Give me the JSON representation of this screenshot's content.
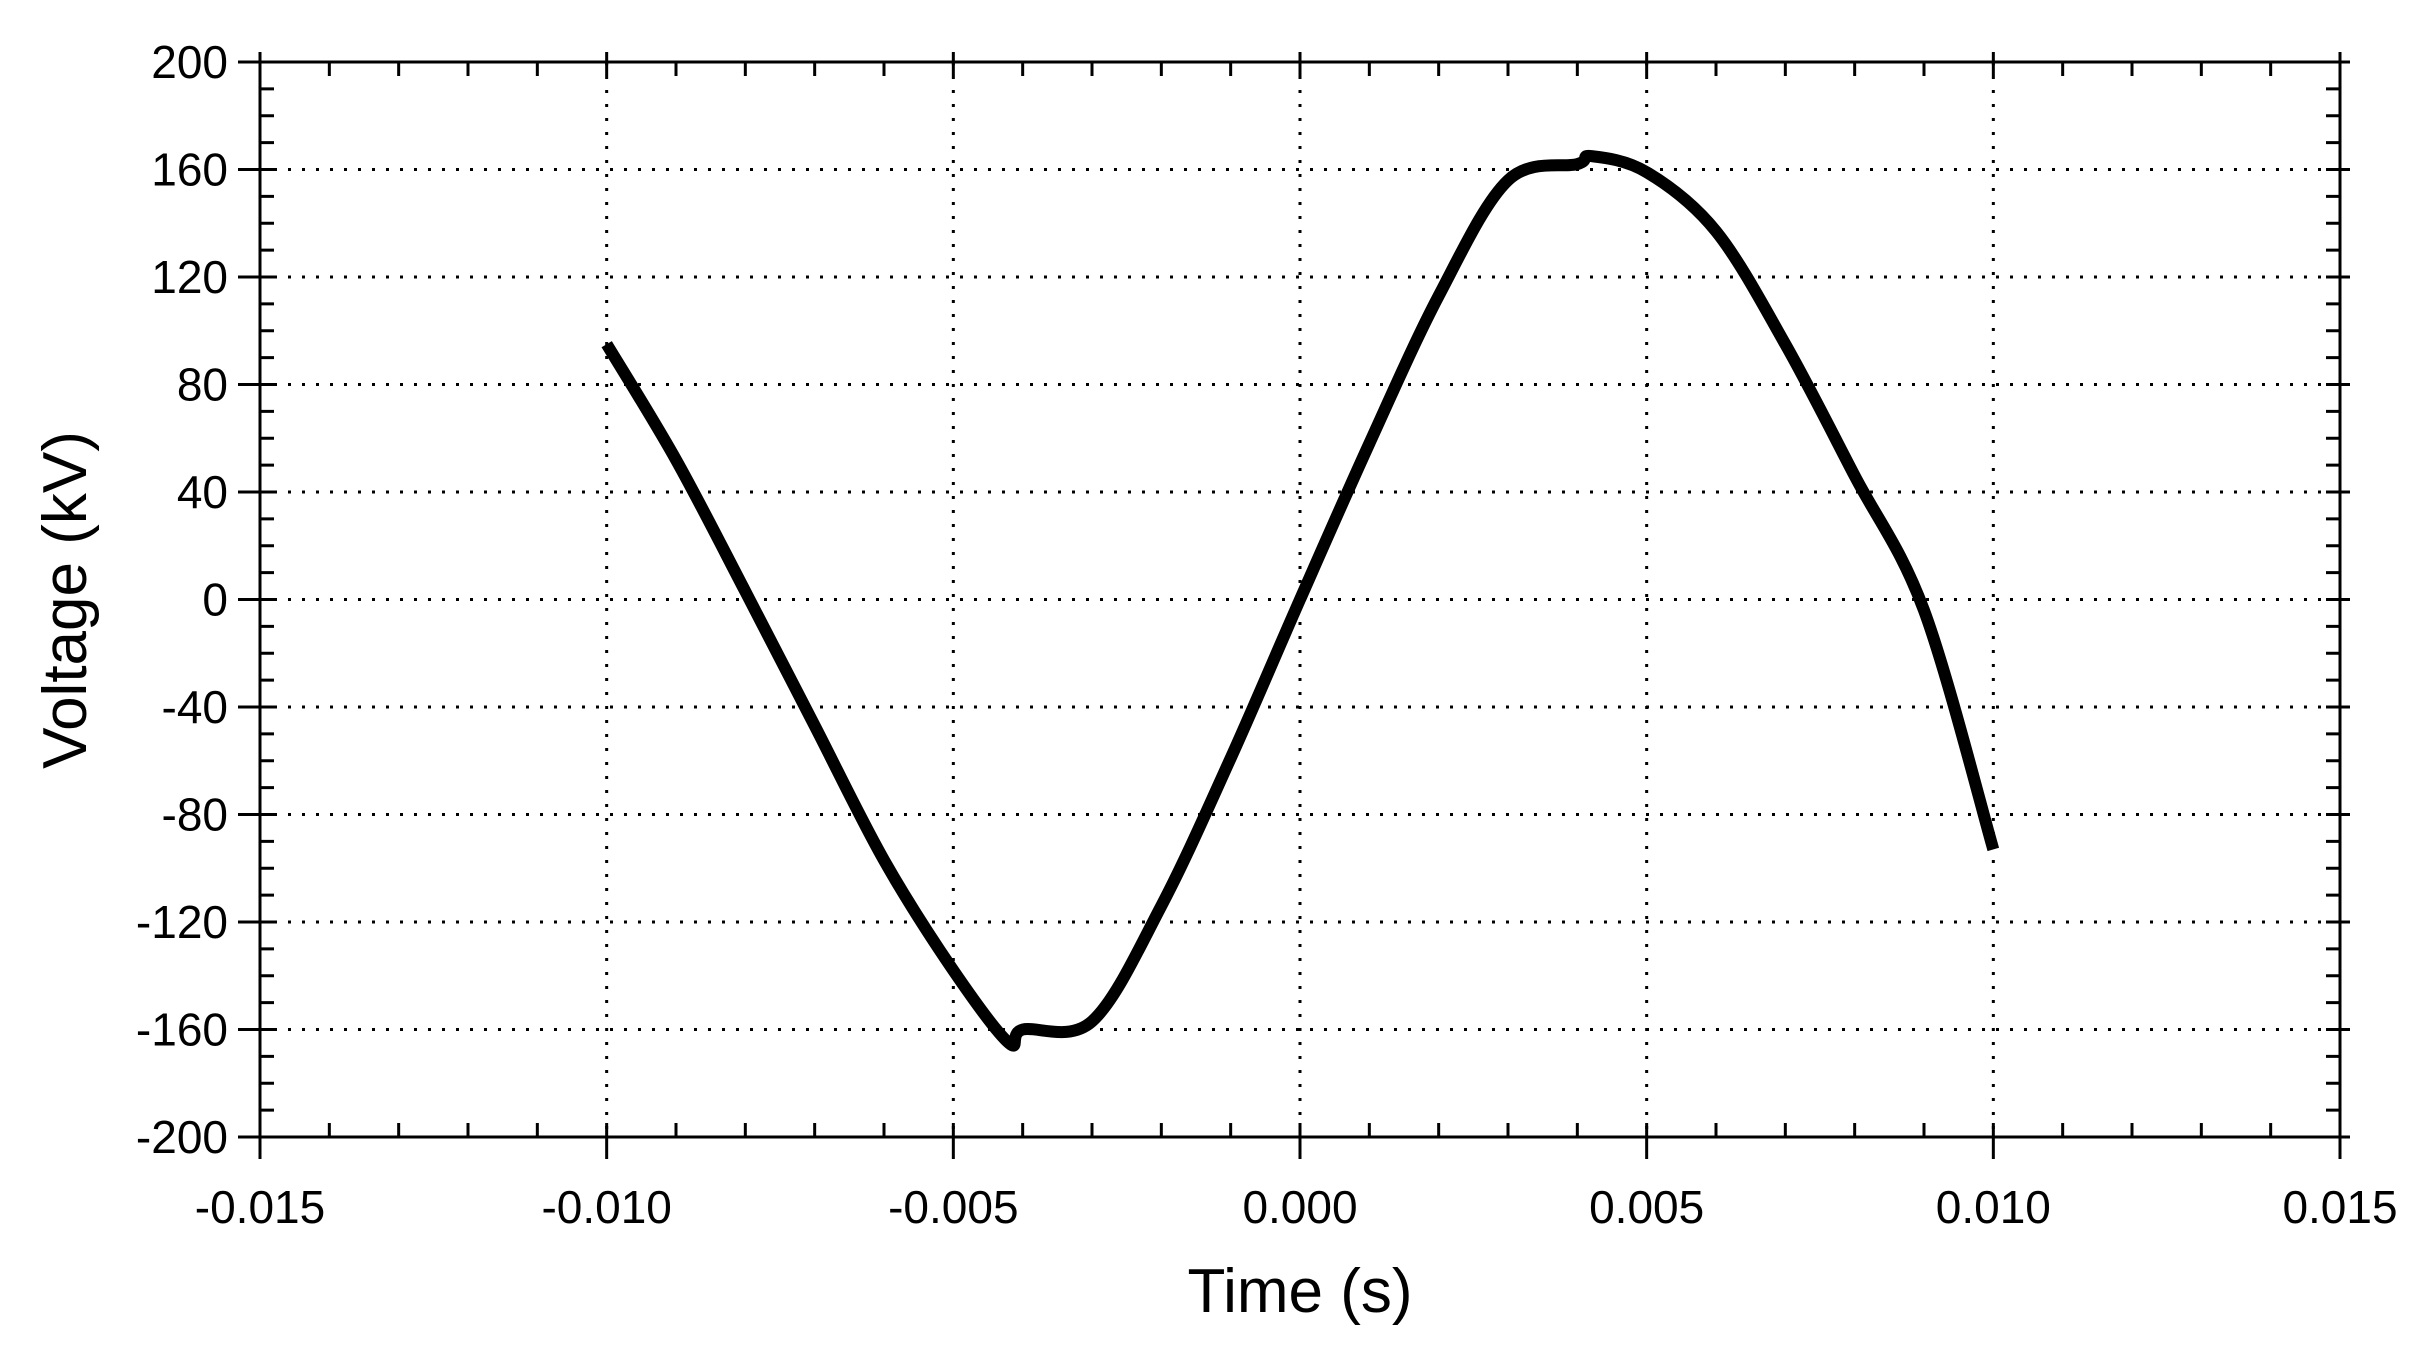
{
  "chart_data": {
    "type": "line",
    "title": "",
    "xlabel": "Time (s)",
    "ylabel": "Voltage (kV)",
    "xlim": [
      -0.015,
      0.015
    ],
    "ylim": [
      -200,
      200
    ],
    "x_ticks": [
      -0.015,
      -0.01,
      -0.005,
      0.0,
      0.005,
      0.01,
      0.015
    ],
    "x_tick_labels": [
      "-0.015",
      "-0.010",
      "-0.005",
      "0.000",
      "0.005",
      "0.010",
      "0.015"
    ],
    "y_ticks": [
      200,
      160,
      120,
      80,
      40,
      0,
      -40,
      -80,
      -120,
      -160,
      -200
    ],
    "y_tick_labels": [
      "200",
      "160",
      "120",
      "80",
      "40",
      "0",
      "-40",
      "-80",
      "-120",
      "-160",
      "-200"
    ],
    "grid": true,
    "grid_style": "dotted",
    "legend": "none",
    "line_color": "#000000",
    "series": [
      {
        "x": [
          -0.01,
          -0.009,
          -0.008,
          -0.007,
          -0.006,
          -0.005,
          -0.0042,
          -0.004,
          -0.003,
          -0.002,
          -0.001,
          0.0,
          0.001,
          0.002,
          0.003,
          0.004,
          0.0042,
          0.005,
          0.006,
          0.007,
          0.008,
          0.009,
          0.01
        ],
        "values": [
          95,
          52,
          3,
          -47,
          -97,
          -138,
          -165,
          -160,
          -157,
          -114,
          -59,
          0,
          58,
          113,
          156,
          162,
          165,
          159,
          137,
          95,
          46,
          -4,
          -93
        ]
      }
    ]
  }
}
